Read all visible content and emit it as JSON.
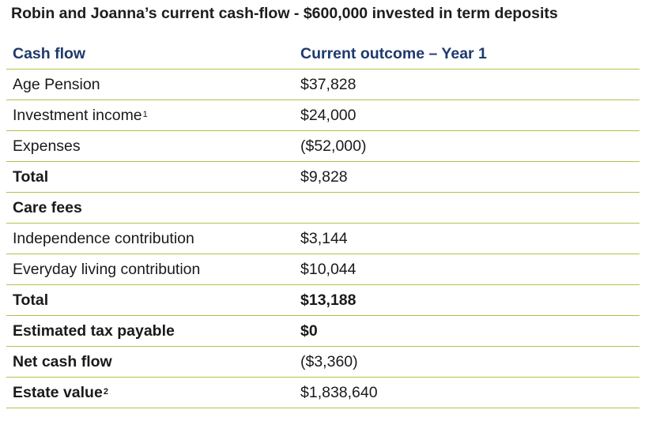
{
  "title": "Robin and Joanna’s current cash-flow - $600,000 invested in term deposits",
  "headers": {
    "col1": "Cash flow",
    "col2": "Current outcome – Year 1"
  },
  "rows": [
    {
      "label": "Age Pension",
      "value": "$37,828"
    },
    {
      "label": "Investment income",
      "label_sup": "1",
      "value": "$24,000"
    },
    {
      "label": "Expenses",
      "value": "($52,000)"
    },
    {
      "label": "Total",
      "value": "$9,828"
    },
    {
      "label": "Care fees",
      "value": ""
    },
    {
      "label": "Independence contribution",
      "value": "$3,144"
    },
    {
      "label": "Everyday living contribution",
      "value": "$10,044"
    },
    {
      "label": "Total",
      "value": "$13,188"
    },
    {
      "label": "Estimated tax payable",
      "value": "$0"
    },
    {
      "label": "Net cash flow",
      "value": "($3,360)"
    },
    {
      "label": "Estate value",
      "label_sup": "2",
      "value": "$1,838,640"
    }
  ],
  "colors": {
    "header_text": "#1f3a6d",
    "rule": "#b7c04a"
  }
}
